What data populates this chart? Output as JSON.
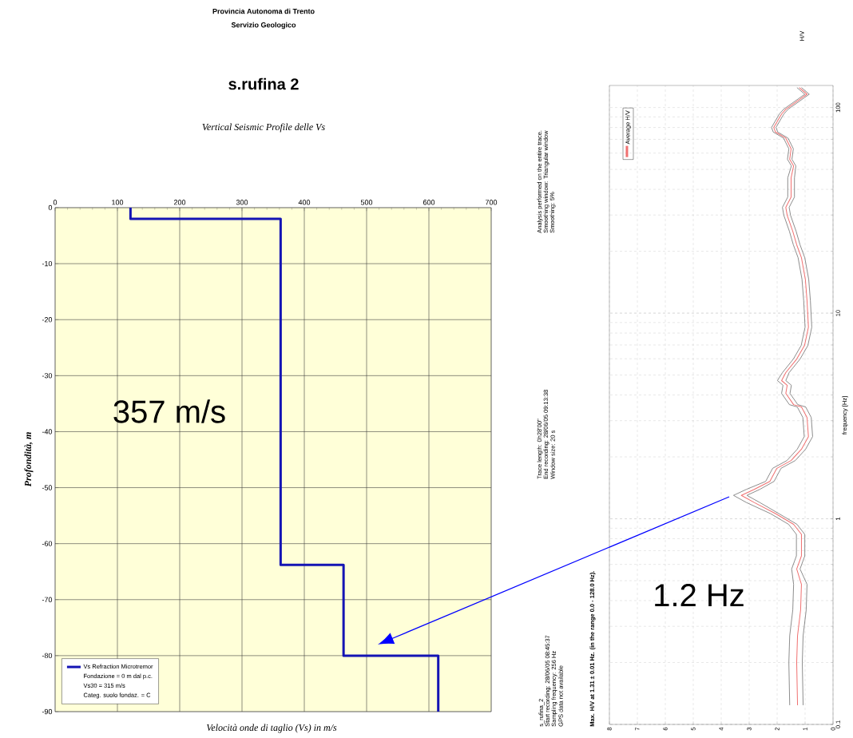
{
  "chart_data": [
    {
      "type": "line",
      "title": "s.rufina 2",
      "subtitle": "Vertical Seismic Profile delle Vs",
      "xlabel": "Velocità onde di taglio (Vs) in m/s",
      "ylabel": "Profondità, m",
      "annotations": [
        "Provincia Autonoma di Trento",
        "Servizio Geologico",
        "357 m/s",
        "Fondazione = 0 m dal p.c.",
        "Vs30 = 315 m/s",
        "Categ. suolo fondaz. = C"
      ],
      "series": [
        {
          "name": "Vs Refraction Microtremor",
          "color": "#1414b4",
          "x": [
            121,
            121,
            362,
            362,
            463,
            463,
            615,
            615
          ],
          "values": [
            0,
            -2,
            -2,
            -63.8,
            -63.8,
            -80,
            -80,
            -90
          ]
        }
      ],
      "xlim": [
        0,
        700
      ],
      "ylim": [
        -90,
        0
      ],
      "xticks": [
        0,
        100,
        200,
        300,
        400,
        500,
        600,
        700
      ],
      "yticks": [
        0,
        -10,
        -20,
        -30,
        -40,
        -50,
        -60,
        -70,
        -80,
        -90
      ],
      "grid": true,
      "legend": "bottom left"
    },
    {
      "type": "line",
      "ylabel": "frequency [Hz]",
      "annotations": [
        "1.2 Hz",
        "s_rufina_2",
        "Start recording: 28/06/05 08:45:37",
        "Sampling frequency:  256 Hz",
        "GPS data not available",
        "Max. H/V at 1.31 ± 0.01 Hz. (in the range 0.0 - 128.0 Hz).",
        "Trace length:  0h28'00''",
        "End recording:  28/06/05 09:13:38",
        "Window size:  20 s",
        "Analysis performed on the entire trace.",
        "Smoothing window: Triangular window",
        "Smoothing:  5%",
        "H/V"
      ],
      "series": [
        {
          "color": "#707070",
          "x": [
            1.29,
            1.01,
            1.21,
            1.77,
            1.92,
            2.2,
            2.14,
            1.77,
            1.58,
            1.63,
            1.49,
            1.62,
            1.62,
            1.81,
            1.76,
            1.56,
            1.42,
            1.25,
            1.11,
            1.05,
            1.0,
            1.14,
            1.42,
            1.81,
            1.99,
            1.79,
            1.84,
            1.56,
            1.28,
            1.08,
            1.03,
            1.28,
            1.65,
            2.16,
            2.41,
            3.1,
            3.56,
            3.1,
            2.24,
            1.59,
            1.31,
            1.31,
            1.48,
            1.41,
            1.44,
            1.55,
            1.58,
            1.55
          ],
          "values": [
            125,
            116,
            111,
            98,
            93,
            80,
            76,
            71,
            63,
            56,
            52,
            45.5,
            36.7,
            32.7,
            29.9,
            25,
            21.5,
            18.6,
            14.6,
            11.5,
            8.55,
            6.96,
            5.98,
            5.14,
            4.7,
            4.46,
            4.07,
            3.59,
            3.5,
            3.11,
            2.51,
            2.18,
            1.92,
            1.76,
            1.52,
            1.39,
            1.3,
            1.2,
            1.06,
            0.94,
            0.84,
            0.66,
            0.57,
            0.48,
            0.36,
            0.27,
            0.2,
            0.124
          ]
        },
        {
          "color": "#707070",
          "x": [
            1.13,
            0.85,
            1.05,
            1.61,
            1.76,
            2.04,
            1.98,
            1.61,
            1.42,
            1.47,
            1.33,
            1.38,
            1.38,
            1.57,
            1.52,
            1.32,
            1.18,
            1.01,
            0.87,
            0.81,
            0.76,
            0.9,
            1.18,
            1.57,
            1.69,
            1.49,
            1.54,
            1.26,
            0.98,
            0.78,
            0.73,
            0.98,
            1.35,
            1.86,
            2.11,
            2.62,
            3.08,
            2.62,
            1.94,
            1.29,
            1.01,
            1.01,
            1.18,
            0.93,
            0.96,
            1.07,
            1.1,
            1.07
          ],
          "values": [
            125,
            116,
            111,
            98,
            93,
            80,
            76,
            71,
            63,
            56,
            52,
            45.5,
            36.7,
            32.7,
            29.9,
            25,
            21.5,
            18.6,
            14.6,
            11.5,
            8.55,
            6.96,
            5.98,
            5.14,
            4.7,
            4.46,
            4.07,
            3.59,
            3.5,
            3.11,
            2.51,
            2.18,
            1.92,
            1.76,
            1.52,
            1.39,
            1.3,
            1.2,
            1.06,
            0.94,
            0.84,
            0.66,
            0.57,
            0.48,
            0.36,
            0.27,
            0.2,
            0.124
          ]
        },
        {
          "name": "Average H/V",
          "color": "#f07070",
          "x": [
            1.21,
            0.93,
            1.13,
            1.69,
            1.84,
            2.12,
            2.06,
            1.69,
            1.5,
            1.55,
            1.41,
            1.5,
            1.5,
            1.69,
            1.64,
            1.44,
            1.3,
            1.13,
            0.99,
            0.93,
            0.88,
            1.02,
            1.3,
            1.69,
            1.84,
            1.64,
            1.69,
            1.41,
            1.13,
            0.93,
            0.88,
            1.13,
            1.5,
            2.01,
            2.26,
            2.82,
            3.28,
            2.82,
            2.06,
            1.41,
            1.13,
            1.13,
            1.3,
            1.13,
            1.16,
            1.27,
            1.3,
            1.27
          ],
          "values": [
            125,
            116,
            111,
            98,
            93,
            80,
            76,
            71,
            63,
            56,
            52,
            45.5,
            36.7,
            32.7,
            29.9,
            25,
            21.5,
            18.6,
            14.6,
            11.5,
            8.55,
            6.96,
            5.98,
            5.14,
            4.7,
            4.46,
            4.07,
            3.59,
            3.5,
            3.11,
            2.51,
            2.18,
            1.92,
            1.76,
            1.52,
            1.39,
            1.3,
            1.2,
            1.06,
            0.94,
            0.84,
            0.66,
            0.57,
            0.48,
            0.36,
            0.27,
            0.2,
            0.124
          ]
        }
      ],
      "xlim": [
        8,
        0
      ],
      "ylim": [
        0.1,
        128
      ],
      "xticks": [
        8,
        7,
        6,
        5,
        4,
        3,
        2,
        1,
        0
      ],
      "yticks": [
        0.1,
        1,
        10,
        100
      ],
      "log": "y",
      "grid": true,
      "legend": "top left"
    }
  ]
}
